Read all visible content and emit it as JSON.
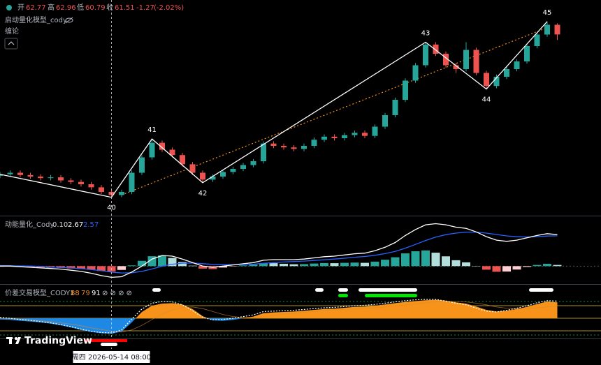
{
  "chart_data": [
    {
      "type": "candlestick",
      "title": "启动量化模型_cody",
      "subtitle": "缠论",
      "header": {
        "open_label": "开",
        "high_label": "高",
        "low_label": "低",
        "close_label": "收",
        "change": -1.27,
        "change_pct": {
          "value": -2.02,
          "label": "(-2.02%)"
        }
      },
      "open": [
        43.1,
        43.3,
        43.5,
        43.2,
        43.0,
        42.8,
        42.9,
        42.5,
        42.3,
        42.0,
        41.6,
        41.0,
        40.6,
        41.0,
        43.5,
        45.5,
        47.4,
        46.5,
        45.8,
        44.6,
        43.5,
        42.6,
        43.0,
        43.6,
        44.0,
        44.5,
        45.0,
        47.3,
        47.0,
        46.8,
        46.6,
        47.0,
        47.8,
        48.2,
        48.0,
        48.4,
        48.7,
        48.3,
        49.5,
        51.0,
        53.0,
        55.5,
        57.5,
        60.2,
        59.0,
        57.5,
        57.0,
        59.5,
        56.5,
        54.8,
        56.0,
        57.0,
        58.0,
        60.0,
        61.5,
        62.77
      ],
      "high": [
        43.6,
        43.8,
        43.8,
        43.5,
        43.3,
        43.2,
        43.2,
        42.8,
        42.6,
        42.3,
        41.9,
        41.3,
        41.3,
        43.8,
        45.8,
        47.9,
        47.7,
        46.8,
        46.1,
        44.9,
        43.8,
        43.3,
        43.9,
        44.3,
        44.8,
        45.3,
        47.6,
        47.6,
        47.3,
        47.1,
        47.3,
        48.1,
        48.5,
        48.5,
        48.7,
        49.0,
        49.0,
        49.8,
        51.3,
        53.3,
        55.8,
        57.8,
        60.5,
        60.5,
        59.3,
        57.8,
        60.5,
        59.8,
        56.8,
        56.3,
        57.3,
        58.3,
        60.3,
        61.8,
        63.2,
        62.96
      ],
      "low": [
        42.8,
        43.0,
        42.9,
        42.7,
        42.5,
        42.5,
        42.2,
        42.0,
        41.7,
        41.3,
        40.7,
        40.3,
        40.3,
        40.7,
        43.2,
        45.2,
        46.2,
        45.5,
        44.3,
        43.2,
        42.2,
        42.3,
        42.7,
        43.3,
        43.7,
        44.2,
        44.7,
        46.7,
        46.5,
        46.3,
        46.3,
        46.7,
        47.5,
        47.7,
        47.7,
        48.1,
        48.0,
        48.0,
        49.2,
        50.7,
        52.7,
        55.2,
        57.2,
        58.7,
        57.2,
        56.5,
        56.7,
        56.2,
        54.4,
        54.5,
        55.7,
        56.7,
        57.7,
        59.7,
        61.2,
        60.79
      ],
      "close": [
        43.3,
        43.5,
        43.2,
        43.0,
        42.8,
        42.9,
        42.5,
        42.3,
        42.0,
        41.6,
        41.0,
        40.6,
        41.0,
        43.5,
        45.5,
        47.4,
        46.5,
        45.8,
        44.6,
        43.5,
        42.6,
        43.0,
        43.6,
        44.0,
        44.5,
        45.0,
        47.3,
        47.0,
        46.8,
        46.6,
        47.0,
        47.8,
        48.2,
        48.0,
        48.4,
        48.7,
        48.3,
        49.5,
        51.0,
        53.0,
        55.5,
        57.5,
        60.2,
        59.0,
        57.5,
        57.0,
        59.5,
        56.5,
        54.8,
        56.0,
        57.0,
        58.0,
        60.0,
        61.5,
        62.78,
        61.51
      ],
      "up_color": "#26a69a",
      "down_color": "#ef5350",
      "ylim": [
        38,
        66
      ],
      "zigzag": {
        "pivot_index": [
          0,
          11,
          15,
          20,
          42,
          48,
          54
        ],
        "values": [
          43.3,
          40.3,
          47.9,
          42.2,
          60.5,
          54.4,
          63.2
        ],
        "pivot_labels": [
          null,
          40,
          41,
          42,
          43,
          44,
          45
        ],
        "color": "#ffffff"
      },
      "trendline": {
        "index": [
          12,
          54
        ],
        "values": [
          40.6,
          62.4
        ],
        "color": "#f7931a"
      }
    },
    {
      "type": "macd",
      "title": "动能量化_Cody",
      "legend_labels": [
        "0.10",
        "2.67",
        "2.57"
      ],
      "hist": [
        -0.05,
        -0.04,
        -0.07,
        -0.1,
        -0.12,
        -0.13,
        -0.15,
        -0.2,
        -0.24,
        -0.31,
        -0.41,
        -0.45,
        -0.32,
        0.06,
        0.45,
        0.84,
        0.91,
        0.69,
        0.35,
        0.04,
        -0.21,
        -0.25,
        -0.12,
        -0.02,
        0.06,
        0.13,
        0.26,
        0.25,
        0.2,
        0.16,
        0.17,
        0.22,
        0.26,
        0.25,
        0.28,
        0.3,
        0.28,
        0.38,
        0.54,
        0.75,
        1.08,
        1.26,
        1.33,
        1.14,
        0.83,
        0.5,
        0.32,
        0.02,
        -0.3,
        -0.48,
        -0.46,
        -0.29,
        -0.07,
        0.1,
        0.2,
        0.1
      ],
      "dif": [
        0.0,
        0.0,
        -0.05,
        -0.1,
        -0.15,
        -0.2,
        -0.25,
        -0.35,
        -0.45,
        -0.6,
        -0.8,
        -0.95,
        -0.9,
        -0.5,
        0.0,
        0.6,
        0.9,
        0.85,
        0.6,
        0.3,
        0.0,
        -0.1,
        0.0,
        0.1,
        0.2,
        0.3,
        0.5,
        0.55,
        0.55,
        0.55,
        0.6,
        0.7,
        0.8,
        0.85,
        0.95,
        1.05,
        1.1,
        1.3,
        1.6,
        2.0,
        2.6,
        3.1,
        3.5,
        3.6,
        3.5,
        3.3,
        3.2,
        2.9,
        2.5,
        2.2,
        2.1,
        2.2,
        2.4,
        2.6,
        2.75,
        2.67
      ],
      "dea": [
        0.05,
        0.04,
        0.02,
        0.0,
        -0.03,
        -0.07,
        -0.1,
        -0.15,
        -0.21,
        -0.29,
        -0.39,
        -0.5,
        -0.58,
        -0.56,
        -0.45,
        -0.24,
        -0.01,
        0.16,
        0.25,
        0.26,
        0.21,
        0.15,
        0.12,
        0.12,
        0.14,
        0.17,
        0.24,
        0.3,
        0.35,
        0.39,
        0.43,
        0.48,
        0.54,
        0.6,
        0.67,
        0.75,
        0.82,
        0.92,
        1.06,
        1.25,
        1.52,
        1.84,
        2.17,
        2.46,
        2.67,
        2.8,
        2.88,
        2.88,
        2.8,
        2.68,
        2.56,
        2.49,
        2.47,
        2.5,
        2.55,
        2.57
      ],
      "colors": {
        "hist_up_strong": "#26a69a",
        "hist_up_weak": "#b2dfdb",
        "hist_down_strong": "#ef5350",
        "hist_down_weak": "#ffcdd2",
        "dif": "#ffffff",
        "dea": "#2962ff"
      },
      "ylim": [
        -1.4,
        4.1
      ]
    },
    {
      "type": "oscillator",
      "title": "价差交易模型_CODY1",
      "symbols": "⊘ ⊘ ⊘ ⊘",
      "series": [
        {
          "name": "area",
          "color": "#f7931a",
          "values": [
            47,
            46,
            44,
            42,
            40,
            37,
            33,
            28,
            22,
            17,
            14,
            13,
            18,
            40,
            65,
            80,
            85,
            86,
            83,
            72,
            55,
            45,
            44,
            46,
            50,
            54,
            62,
            64,
            65,
            66,
            68,
            70,
            72,
            73,
            75,
            77,
            78,
            80,
            83,
            86,
            89,
            91,
            93,
            94,
            92,
            88,
            85,
            78,
            70,
            66,
            68,
            72,
            77,
            84,
            90,
            88
          ]
        },
        {
          "name": "slow",
          "color": "#d98a2b",
          "values": [
            50,
            49,
            48,
            46,
            44,
            42,
            39,
            36,
            32,
            27,
            23,
            19,
            17,
            22,
            33,
            47,
            60,
            70,
            76,
            77,
            73,
            66,
            59,
            54,
            52,
            52,
            54,
            57,
            60,
            62,
            64,
            66,
            68,
            69,
            71,
            72,
            74,
            75,
            77,
            79,
            82,
            84,
            87,
            89,
            90,
            90,
            89,
            86,
            82,
            77,
            74,
            73,
            73,
            75,
            77,
            79
          ]
        },
        {
          "name": "signal",
          "color": "#ffffff",
          "values": [
            52,
            50,
            47,
            45,
            42,
            39,
            35,
            30,
            24,
            19,
            16,
            15,
            22,
            48,
            72,
            86,
            90,
            89,
            82,
            68,
            52,
            46,
            47,
            50,
            54,
            58,
            66,
            67,
            68,
            69,
            71,
            73,
            75,
            76,
            78,
            80,
            81,
            83,
            86,
            89,
            92,
            94,
            95,
            95,
            91,
            86,
            82,
            74,
            67,
            65,
            69,
            74,
            80,
            87,
            92,
            91
          ]
        }
      ],
      "baseline": 50,
      "below_color": "#1e88e5",
      "hlines": [
        90,
        80,
        50,
        20,
        10
      ],
      "hline_colors": [
        "#00c853",
        "#e6c229",
        "#e6c229",
        "#e6c229",
        "#00c853"
      ],
      "ylim": [
        0,
        125
      ]
    }
  ],
  "crosshair": {
    "index": 11,
    "label": "周四 2026-05-14  08:00"
  },
  "logo": "TradingView"
}
